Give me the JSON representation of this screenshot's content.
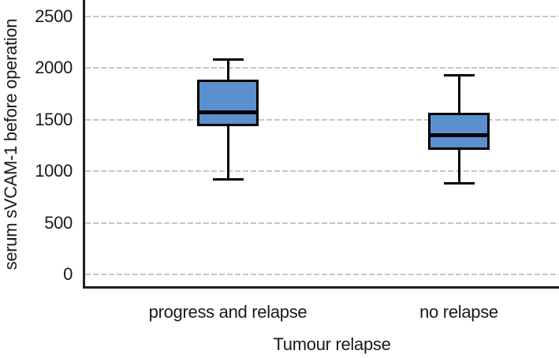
{
  "chart_data": {
    "type": "boxplot",
    "title": "",
    "xlabel": "Tumour relapse",
    "ylabel": "serum sVCAM-1 before operation",
    "categories": [
      "progress and relapse",
      "no relapse"
    ],
    "y_ticks": [
      2500,
      2000,
      1500,
      1000,
      500,
      0
    ],
    "ylim": [
      0,
      2500
    ],
    "grid": "horizontal-dashed",
    "legend": "none",
    "series": [
      {
        "category": "progress and relapse",
        "min": 920,
        "q1": 1440,
        "median": 1570,
        "q3": 1890,
        "max": 2085
      },
      {
        "category": "no relapse",
        "min": 880,
        "q1": 1210,
        "median": 1350,
        "q3": 1570,
        "max": 1930
      }
    ],
    "colors": {
      "box_fill": "#5C8FCE",
      "box_border": "#000000",
      "median_line": "#000000",
      "whisker": "#000000",
      "gridline": "#c7c7c7",
      "axis_line": "#1f1f1f",
      "text": "#1a1a1a"
    }
  }
}
